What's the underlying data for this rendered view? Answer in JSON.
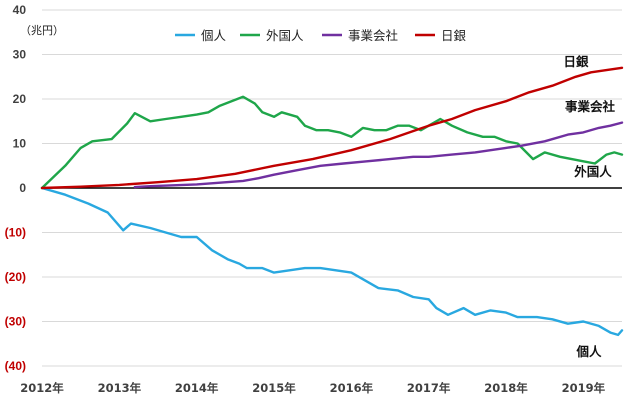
{
  "chart_data": {
    "type": "line",
    "unit_label": "（兆円）",
    "x": [
      "2012年",
      "2013年",
      "2014年",
      "2015年",
      "2016年",
      "2017年",
      "2018年",
      "2019年"
    ],
    "ylim": [
      -40,
      40
    ],
    "y_ticks": [
      {
        "value": 40,
        "label": "40"
      },
      {
        "value": 30,
        "label": "30"
      },
      {
        "value": 20,
        "label": "20"
      },
      {
        "value": 10,
        "label": "10"
      },
      {
        "value": 0,
        "label": "0"
      },
      {
        "value": -10,
        "label": "(10)"
      },
      {
        "value": -20,
        "label": "(20)"
      },
      {
        "value": -30,
        "label": "(30)"
      },
      {
        "value": -40,
        "label": "(40)"
      }
    ],
    "grid": true,
    "legend_position": "top-center",
    "colors": {
      "個人": "#29a8e0",
      "外国人": "#1fa64a",
      "事業会社": "#7030a0",
      "日銀": "#c00000",
      "negative_tick": "#c00000",
      "zero_line": "#000000",
      "grid": "#d9d9d9"
    },
    "series": [
      {
        "name": "個人",
        "end_label": "個人",
        "points": [
          [
            2012.0,
            0
          ],
          [
            2012.3,
            -1.5
          ],
          [
            2012.6,
            -3.5
          ],
          [
            2012.85,
            -5.5
          ],
          [
            2013.05,
            -9.5
          ],
          [
            2013.15,
            -8
          ],
          [
            2013.4,
            -9
          ],
          [
            2013.6,
            -10
          ],
          [
            2013.8,
            -11
          ],
          [
            2014.0,
            -11
          ],
          [
            2014.2,
            -14
          ],
          [
            2014.4,
            -16
          ],
          [
            2014.55,
            -17
          ],
          [
            2014.65,
            -18
          ],
          [
            2014.85,
            -18
          ],
          [
            2015.0,
            -19
          ],
          [
            2015.2,
            -18.5
          ],
          [
            2015.4,
            -18
          ],
          [
            2015.6,
            -18
          ],
          [
            2015.8,
            -18.5
          ],
          [
            2016.0,
            -19
          ],
          [
            2016.2,
            -21
          ],
          [
            2016.35,
            -22.5
          ],
          [
            2016.6,
            -23
          ],
          [
            2016.8,
            -24.5
          ],
          [
            2017.0,
            -25
          ],
          [
            2017.1,
            -27
          ],
          [
            2017.25,
            -28.5
          ],
          [
            2017.45,
            -27
          ],
          [
            2017.6,
            -28.5
          ],
          [
            2017.8,
            -27.5
          ],
          [
            2018.0,
            -28
          ],
          [
            2018.15,
            -29
          ],
          [
            2018.4,
            -29
          ],
          [
            2018.6,
            -29.5
          ],
          [
            2018.8,
            -30.5
          ],
          [
            2019.0,
            -30
          ],
          [
            2019.2,
            -31
          ],
          [
            2019.35,
            -32.5
          ],
          [
            2019.45,
            -33
          ],
          [
            2019.5,
            -32
          ]
        ]
      },
      {
        "name": "外国人",
        "end_label": "外国人",
        "points": [
          [
            2012.0,
            0
          ],
          [
            2012.15,
            2.5
          ],
          [
            2012.3,
            5
          ],
          [
            2012.5,
            9
          ],
          [
            2012.65,
            10.5
          ],
          [
            2012.9,
            11
          ],
          [
            2013.1,
            14.5
          ],
          [
            2013.2,
            16.8
          ],
          [
            2013.4,
            15
          ],
          [
            2013.6,
            15.5
          ],
          [
            2013.8,
            16
          ],
          [
            2014.0,
            16.5
          ],
          [
            2014.15,
            17
          ],
          [
            2014.3,
            18.5
          ],
          [
            2014.45,
            19.5
          ],
          [
            2014.6,
            20.5
          ],
          [
            2014.75,
            19
          ],
          [
            2014.85,
            17
          ],
          [
            2015.0,
            16
          ],
          [
            2015.1,
            17
          ],
          [
            2015.3,
            16
          ],
          [
            2015.4,
            14
          ],
          [
            2015.55,
            13
          ],
          [
            2015.7,
            13
          ],
          [
            2015.85,
            12.5
          ],
          [
            2016.0,
            11.5
          ],
          [
            2016.15,
            13.5
          ],
          [
            2016.3,
            13
          ],
          [
            2016.45,
            13
          ],
          [
            2016.6,
            14
          ],
          [
            2016.75,
            14
          ],
          [
            2016.9,
            13
          ],
          [
            2017.0,
            14
          ],
          [
            2017.15,
            15.5
          ],
          [
            2017.3,
            14
          ],
          [
            2017.5,
            12.5
          ],
          [
            2017.7,
            11.5
          ],
          [
            2017.85,
            11.5
          ],
          [
            2018.0,
            10.5
          ],
          [
            2018.15,
            10
          ],
          [
            2018.35,
            6.5
          ],
          [
            2018.5,
            8
          ],
          [
            2018.7,
            7
          ],
          [
            2018.85,
            6.5
          ],
          [
            2019.0,
            6
          ],
          [
            2019.15,
            5.5
          ],
          [
            2019.3,
            7.5
          ],
          [
            2019.4,
            8
          ],
          [
            2019.5,
            7.5
          ]
        ]
      },
      {
        "name": "事業会社",
        "end_label": "事業会社",
        "points": [
          [
            2013.2,
            0.2
          ],
          [
            2013.4,
            0.4
          ],
          [
            2013.7,
            0.6
          ],
          [
            2014.0,
            0.8
          ],
          [
            2014.3,
            1.2
          ],
          [
            2014.6,
            1.6
          ],
          [
            2014.8,
            2.2
          ],
          [
            2015.0,
            3
          ],
          [
            2015.3,
            4
          ],
          [
            2015.6,
            5
          ],
          [
            2015.9,
            5.5
          ],
          [
            2016.2,
            6
          ],
          [
            2016.5,
            6.5
          ],
          [
            2016.8,
            7
          ],
          [
            2017.0,
            7
          ],
          [
            2017.3,
            7.5
          ],
          [
            2017.6,
            8
          ],
          [
            2017.8,
            8.5
          ],
          [
            2018.0,
            9
          ],
          [
            2018.2,
            9.5
          ],
          [
            2018.5,
            10.5
          ],
          [
            2018.8,
            12
          ],
          [
            2019.0,
            12.5
          ],
          [
            2019.2,
            13.5
          ],
          [
            2019.35,
            14
          ],
          [
            2019.5,
            14.7
          ]
        ]
      },
      {
        "name": "日銀",
        "end_label": "日銀",
        "points": [
          [
            2012.0,
            0
          ],
          [
            2012.5,
            0.3
          ],
          [
            2013.0,
            0.7
          ],
          [
            2013.5,
            1.3
          ],
          [
            2014.0,
            2
          ],
          [
            2014.5,
            3.2
          ],
          [
            2015.0,
            5
          ],
          [
            2015.5,
            6.5
          ],
          [
            2016.0,
            8.5
          ],
          [
            2016.5,
            11
          ],
          [
            2017.0,
            14
          ],
          [
            2017.3,
            15.5
          ],
          [
            2017.6,
            17.5
          ],
          [
            2018.0,
            19.5
          ],
          [
            2018.3,
            21.5
          ],
          [
            2018.6,
            23
          ],
          [
            2018.9,
            25
          ],
          [
            2019.1,
            26
          ],
          [
            2019.3,
            26.5
          ],
          [
            2019.5,
            27
          ]
        ]
      }
    ]
  }
}
